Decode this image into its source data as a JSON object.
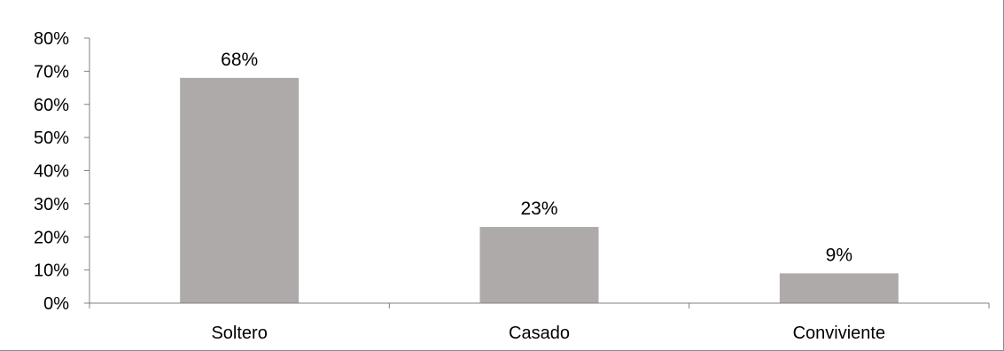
{
  "chart_data": {
    "type": "bar",
    "title": "",
    "xlabel": "",
    "ylabel": "",
    "categories": [
      "Soltero",
      "Casado",
      "Conviviente"
    ],
    "values": [
      68,
      23,
      9
    ],
    "data_labels": [
      "68%",
      "23%",
      "9%"
    ],
    "ylim": [
      0,
      80
    ],
    "yticks": [
      0,
      10,
      20,
      30,
      40,
      50,
      60,
      70,
      80
    ],
    "ytick_labels": [
      "0%",
      "10%",
      "20%",
      "30%",
      "40%",
      "50%",
      "60%",
      "70%",
      "80%"
    ],
    "grid": false,
    "legend": "none",
    "bar_color": "#aeaaaa",
    "axis_color": "#808080"
  }
}
